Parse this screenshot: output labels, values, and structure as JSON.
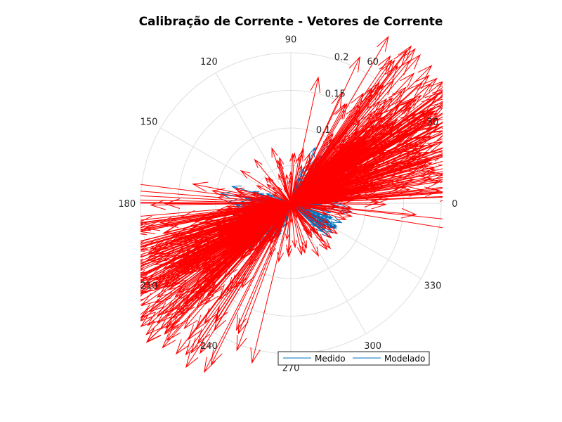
{
  "chart_data": {
    "type": "polar-compass",
    "title": "Calibração de Corrente - Vetores de Corrente",
    "angle_ticks": [
      "0",
      "30",
      "60",
      "90",
      "120",
      "150",
      "180",
      "210",
      "240",
      "270",
      "300",
      "330"
    ],
    "angle_tick_values": [
      0,
      30,
      60,
      90,
      120,
      150,
      180,
      210,
      240,
      270,
      300,
      330
    ],
    "radial_ticks": [
      "0.1",
      "0.15",
      "0.2"
    ],
    "radial_tick_values": [
      0.1,
      0.15,
      0.2
    ],
    "rlim": [
      0,
      0.2
    ],
    "grid": true,
    "legend": {
      "placement": "bottom-right",
      "entries": [
        "Medido",
        "Modelado"
      ]
    },
    "series": [
      {
        "name": "Medido",
        "color": "#0072BD",
        "dominant_direction_deg": [
          30,
          210
        ],
        "typical_magnitude": [
          0.02,
          0.09
        ],
        "secondary_direction_deg": 330,
        "secondary_magnitude": 0.07
      },
      {
        "name": "Modelado",
        "color": "#FF0000",
        "dominant_direction_deg": [
          30,
          210
        ],
        "typical_magnitude": [
          0.03,
          0.25
        ],
        "max_magnitude": 0.27
      }
    ]
  },
  "colors": {
    "grid": "#DEDEDE",
    "medido": "#0072BD",
    "modelado": "#FF0000"
  }
}
